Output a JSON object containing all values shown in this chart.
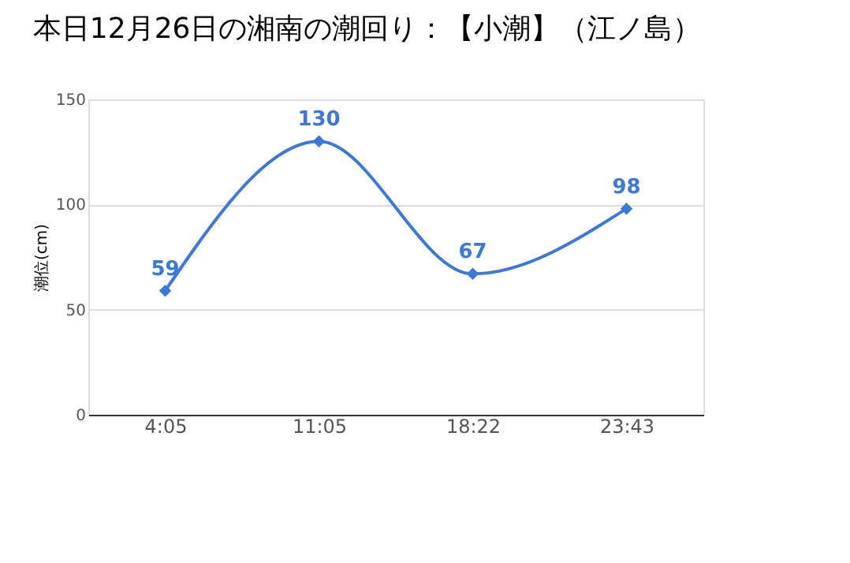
{
  "chart_data": {
    "type": "line",
    "title": "本日12月26日の湘南の潮回り：【小潮】（江ノ島）",
    "ylabel": "潮位(cm)",
    "categories": [
      "4:05",
      "11:05",
      "18:22",
      "23:43"
    ],
    "series": [
      {
        "color": "#3c78d8",
        "values": [
          59,
          130,
          67,
          98
        ]
      }
    ],
    "ylim": [
      0,
      150
    ],
    "yticks": [
      0,
      50,
      100,
      150
    ],
    "grid": "y",
    "marker": "diamond",
    "data_labels": true,
    "legend": false
  }
}
